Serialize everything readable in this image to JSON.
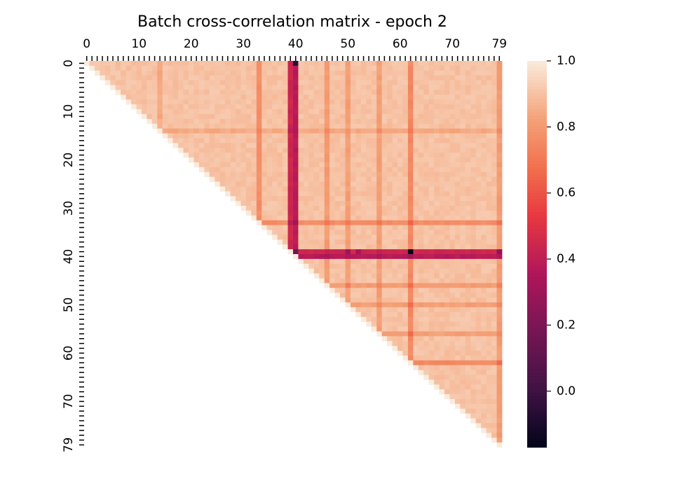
{
  "chart_data": {
    "type": "heatmap",
    "title": "Batch cross-correlation matrix - epoch 2",
    "matrix_size": 80,
    "mask": "upper-triangle (cells below the diagonal are blank)",
    "x_ticks": [
      0,
      10,
      20,
      30,
      40,
      50,
      60,
      70,
      79
    ],
    "y_ticks": [
      0,
      10,
      20,
      30,
      40,
      50,
      60,
      70,
      79
    ],
    "x_axis_position": "top",
    "colorbar": {
      "min": -0.17,
      "max": 1.0,
      "ticks": [
        1.0,
        0.8,
        0.6,
        0.4,
        0.2,
        0.0
      ],
      "tick_labels": [
        "1.0",
        "0.8",
        "0.6",
        "0.4",
        "0.2",
        "0.0"
      ],
      "colormap": "rocket",
      "position": "right"
    },
    "base_correlation": 0.96,
    "low_correlation_features": [
      {
        "index": 40,
        "level": 0.42
      },
      {
        "index": 39,
        "level": 0.48
      },
      {
        "index": 62,
        "level": 0.8
      },
      {
        "index": 33,
        "level": 0.82
      },
      {
        "index": 46,
        "level": 0.86
      },
      {
        "index": 79,
        "level": 0.86
      },
      {
        "index": 50,
        "level": 0.87
      },
      {
        "index": 56,
        "level": 0.87
      },
      {
        "index": 14,
        "level": 0.9
      }
    ],
    "notable_cells": [
      {
        "row": 0,
        "col": 40,
        "value": -0.05
      },
      {
        "row": 39,
        "col": 62,
        "value": -0.17
      },
      {
        "row": 39,
        "col": 50,
        "value": 0.3
      },
      {
        "row": 39,
        "col": 79,
        "value": 0.25
      },
      {
        "row": 39,
        "col": 52,
        "value": 0.32
      }
    ]
  }
}
